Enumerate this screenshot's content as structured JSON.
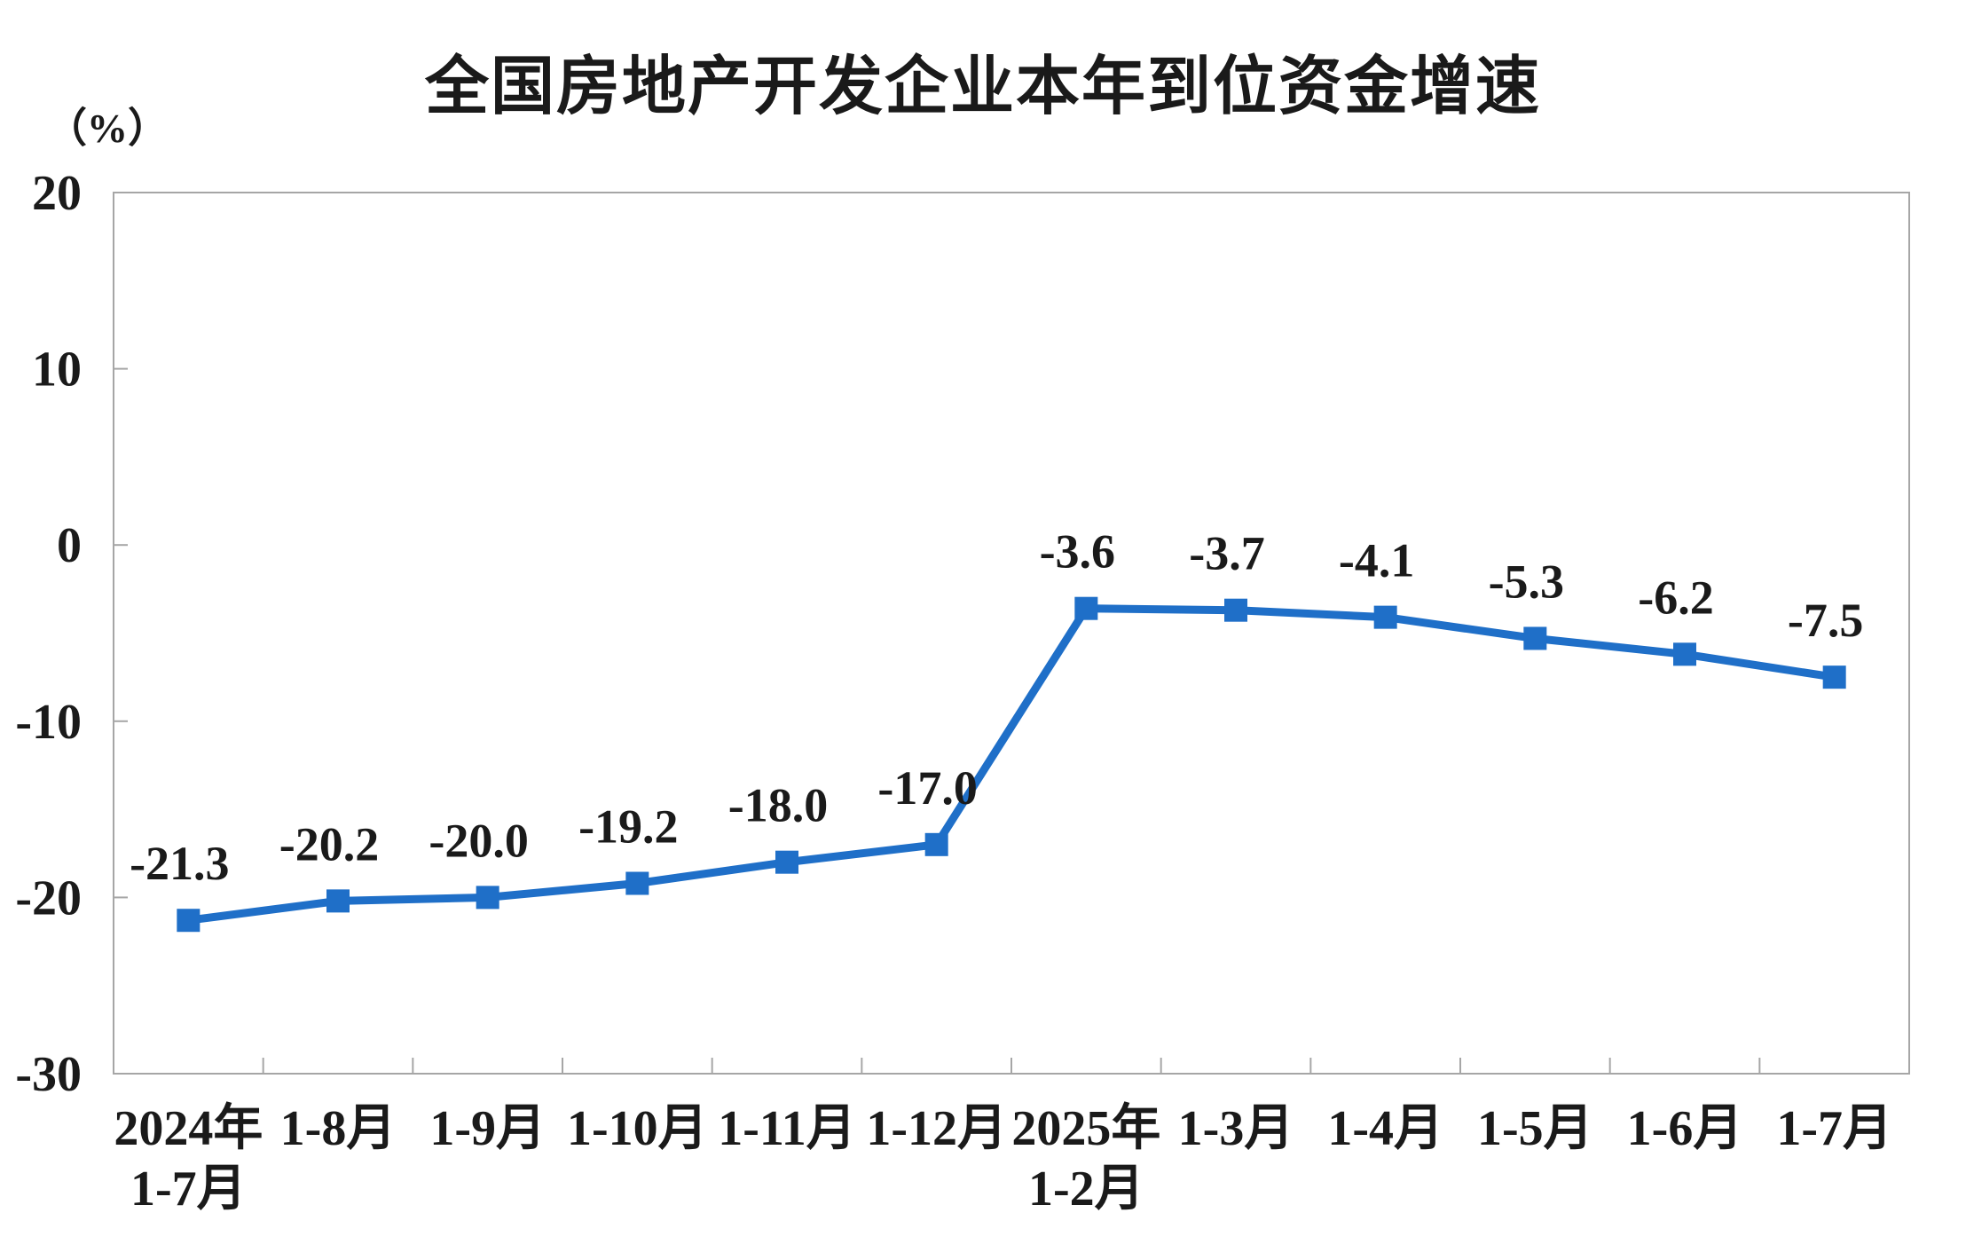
{
  "page": {
    "background": "#ffffff"
  },
  "chart_data": {
    "type": "line",
    "title": "全国房地产开发企业本年到位资金增速",
    "unit_label": "（%）",
    "categories": [
      [
        "2024年",
        "1-7月"
      ],
      [
        "1-8月"
      ],
      [
        "1-9月"
      ],
      [
        "1-10月"
      ],
      [
        "1-11月"
      ],
      [
        "1-12月"
      ],
      [
        "2025年",
        "1-2月"
      ],
      [
        "1-3月"
      ],
      [
        "1-4月"
      ],
      [
        "1-5月"
      ],
      [
        "1-6月"
      ],
      [
        "1-7月"
      ]
    ],
    "values": [
      -21.3,
      -20.2,
      -20.0,
      -19.2,
      -18.0,
      -17.0,
      -3.6,
      -3.7,
      -4.1,
      -5.3,
      -6.2,
      -7.5
    ],
    "data_labels": [
      "-21.3",
      "-20.2",
      "-20.0",
      "-19.2",
      "-18.0",
      "-17.0",
      "-3.6",
      "-3.7",
      "-4.1",
      "-5.3",
      "-6.2",
      "-7.5"
    ],
    "yticks": [
      20,
      10,
      0,
      -10,
      -20,
      -30
    ],
    "ytick_labels": [
      "20",
      "10",
      "0",
      "-10",
      "-20",
      "-30"
    ],
    "ylim": [
      -30,
      20
    ],
    "grid": false,
    "legend": "none",
    "line_color": "#1F6FC8",
    "marker_color": "#1F6FC8",
    "axis_color": "#a6a6a6",
    "text_color": "#1a1a1a"
  }
}
